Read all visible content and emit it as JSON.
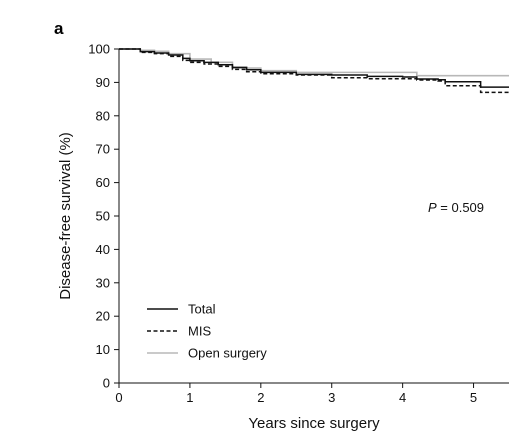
{
  "panel_label": "a",
  "chart_data": {
    "type": "line",
    "title": "",
    "xlabel": "Years since surgery",
    "ylabel": "Disease-free survival (%)",
    "xlim": [
      0,
      5.5
    ],
    "ylim": [
      0,
      100
    ],
    "xticks": [
      0,
      1,
      2,
      3,
      4,
      5
    ],
    "yticks": [
      0,
      10,
      20,
      30,
      40,
      50,
      60,
      70,
      80,
      90,
      100
    ],
    "grid": false,
    "legend_position": "bottom-left",
    "annotation": {
      "italic": "P",
      "text": " = 0.509"
    },
    "series": [
      {
        "name": "Total",
        "style": "solid",
        "color": "#111111",
        "x": [
          0,
          0.3,
          0.5,
          0.7,
          0.9,
          1.0,
          1.2,
          1.4,
          1.6,
          1.8,
          2.0,
          2.5,
          3.0,
          3.5,
          4.0,
          4.2,
          4.5,
          4.6,
          5.0,
          5.1,
          5.5
        ],
        "y": [
          100,
          99.2,
          98.8,
          98.2,
          97.2,
          96.5,
          96.0,
          95.3,
          94.5,
          93.8,
          93.0,
          92.4,
          92.2,
          91.8,
          91.6,
          91.0,
          90.8,
          90.2,
          90.2,
          88.6,
          88.6
        ]
      },
      {
        "name": "MIS",
        "style": "dashed",
        "color": "#111111",
        "x": [
          0,
          0.3,
          0.5,
          0.7,
          0.9,
          1.0,
          1.2,
          1.4,
          1.6,
          1.8,
          2.0,
          2.5,
          3.0,
          3.5,
          4.0,
          4.2,
          4.5,
          4.6,
          5.0,
          5.1,
          5.5
        ],
        "y": [
          100,
          99.0,
          98.6,
          97.8,
          96.6,
          96.0,
          95.5,
          94.8,
          93.9,
          93.2,
          92.6,
          92.2,
          91.4,
          91.1,
          91.1,
          90.7,
          90.4,
          89.0,
          89.0,
          87.0,
          87.0
        ]
      },
      {
        "name": "Open surgery",
        "style": "solid",
        "color": "#b8b8b8",
        "x": [
          0,
          0.3,
          0.5,
          0.7,
          1.0,
          1.3,
          1.6,
          2.0,
          2.5,
          3.0,
          3.5,
          4.0,
          4.2,
          5.0,
          5.5
        ],
        "y": [
          100,
          99.6,
          99.3,
          98.6,
          97.0,
          96.0,
          94.3,
          93.5,
          93.0,
          93.0,
          93.0,
          93.0,
          92.0,
          92.0,
          92.0
        ]
      }
    ]
  }
}
